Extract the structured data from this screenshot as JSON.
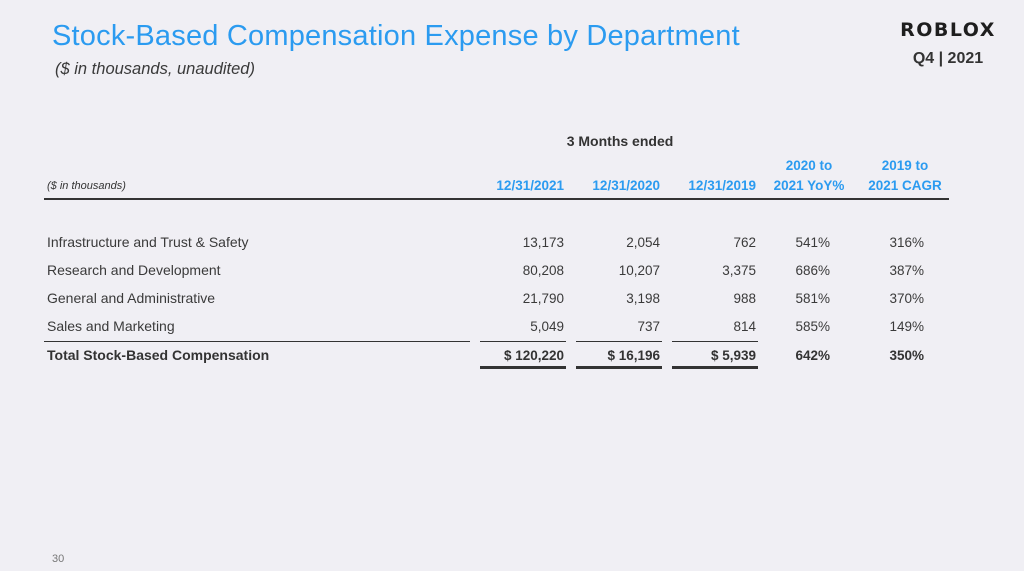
{
  "header": {
    "title": "Stock-Based Compensation Expense by Department",
    "subtitle": "($ in thousands, unaudited)",
    "logo_text": "ROBLOX",
    "period": "Q4 | 2021"
  },
  "table": {
    "group_header": "3 Months ended",
    "units_label": "($ in thousands)",
    "columns": [
      {
        "line1": "",
        "line2": "12/31/2021"
      },
      {
        "line1": "",
        "line2": "12/31/2020"
      },
      {
        "line1": "",
        "line2": "12/31/2019"
      },
      {
        "line1": "2020 to",
        "line2": "2021 YoY%"
      },
      {
        "line1": "2019 to",
        "line2": "2021 CAGR"
      }
    ],
    "rows": [
      {
        "label": "Infrastructure and Trust & Safety",
        "values": [
          "13,173",
          "2,054",
          "762",
          "541%",
          "316%"
        ]
      },
      {
        "label": "Research and Development",
        "values": [
          "80,208",
          "10,207",
          "3,375",
          "686%",
          "387%"
        ]
      },
      {
        "label": "General and Administrative",
        "values": [
          "21,790",
          "3,198",
          "988",
          "581%",
          "370%"
        ]
      },
      {
        "label": "Sales and Marketing",
        "values": [
          "5,049",
          "737",
          "814",
          "585%",
          "149%"
        ]
      }
    ],
    "total": {
      "label": "Total Stock-Based Compensation",
      "values": [
        "$ 120,220",
        "$ 16,196",
        "$ 5,939",
        "642%",
        "350%"
      ]
    }
  },
  "footer": {
    "page_number": "30"
  },
  "colors": {
    "accent": "#2b9bf0",
    "background": "#f0eff4",
    "text": "#3a3a3a"
  }
}
